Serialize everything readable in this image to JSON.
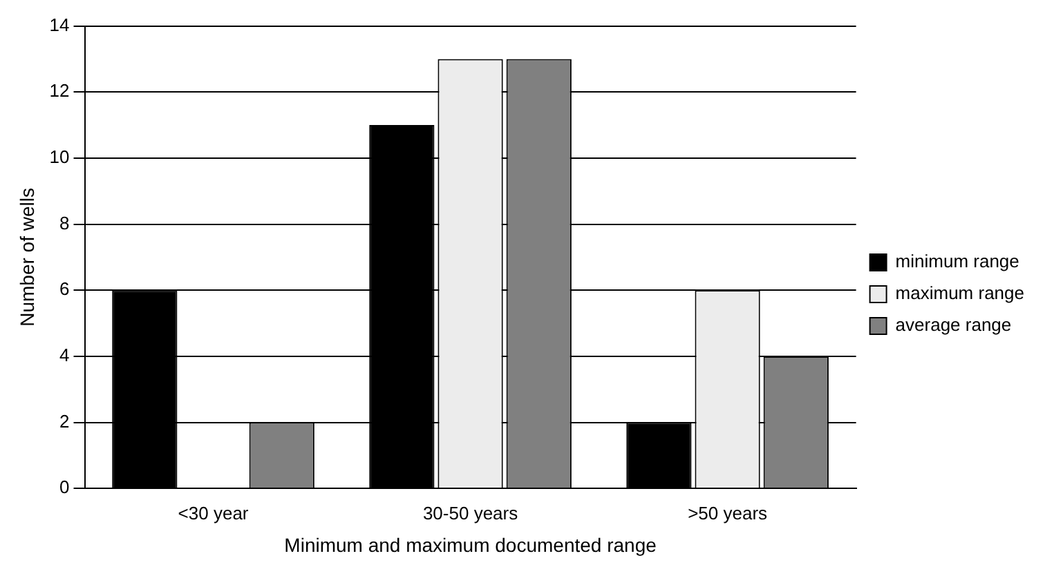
{
  "chart_data": {
    "type": "bar",
    "xlabel": "Minimum and maximum documented range",
    "ylabel": "Number of wells",
    "categories": [
      "<30 year",
      "30-50 years",
      ">50 years"
    ],
    "series": [
      {
        "name": "minimum range",
        "color": "#000000",
        "values": [
          6,
          11,
          2
        ]
      },
      {
        "name": "maximum range",
        "color": "#ececec",
        "values": [
          0,
          13,
          6
        ]
      },
      {
        "name": "average range",
        "color": "#808080",
        "values": [
          2,
          13,
          4
        ]
      }
    ],
    "ylim": [
      0,
      14
    ],
    "yticks": [
      0,
      2,
      4,
      6,
      8,
      10,
      12,
      14
    ],
    "grid": "y",
    "legend": "right"
  }
}
